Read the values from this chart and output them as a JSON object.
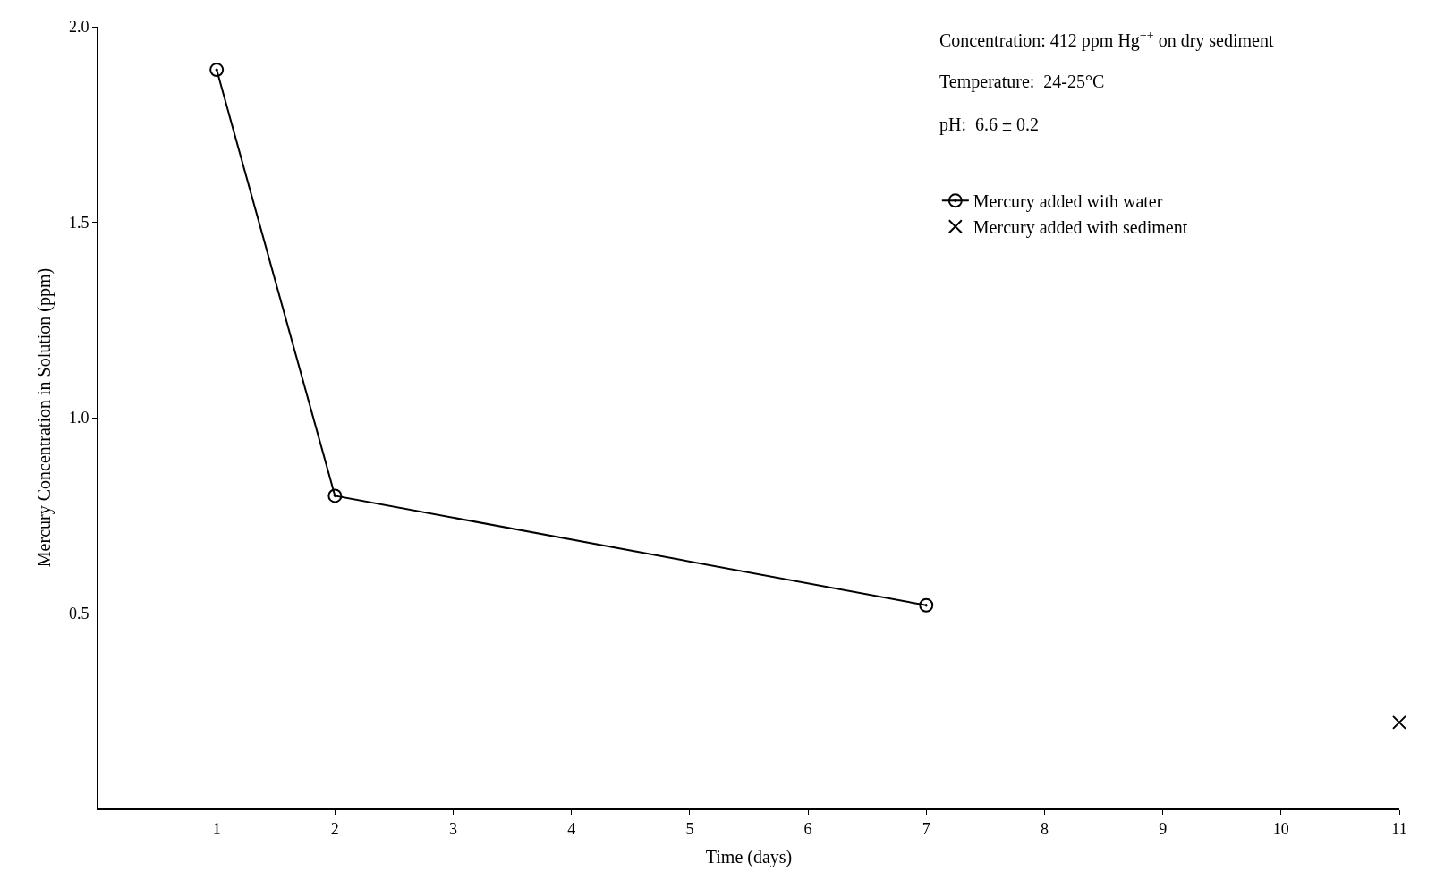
{
  "chart_data": {
    "type": "line",
    "xlabel": "Time (days)",
    "ylabel": "Mercury Concentration in Solution (ppm)",
    "xlim": [
      0,
      11
    ],
    "xticks": [
      1,
      2,
      3,
      4,
      5,
      6,
      7,
      8,
      9,
      10,
      11
    ],
    "ylim": [
      0,
      2.0
    ],
    "yticks": [
      0.5,
      {
        "value": 1.0,
        "label": "1.0"
      },
      1.5,
      {
        "value": 2.0,
        "label": "2.0"
      }
    ],
    "legend": "top right",
    "annotations": [
      "Concentration: 412 ppm Hg$^{++}$ on dry sediment",
      "Temperature:  24-25°C",
      "pH:  6.6 ± 0.2"
    ],
    "series": [
      {
        "name": "Mercury added with water",
        "marker": "circle",
        "color": "#000000",
        "x": [
          1,
          2,
          7
        ],
        "values": [
          1.89,
          0.8,
          0.52
        ]
      },
      {
        "name": "Mercury added with sediment",
        "type": "scatter",
        "marker": "cross",
        "color": "#000000",
        "x": [
          11
        ],
        "values": [
          0.22
        ]
      }
    ]
  }
}
